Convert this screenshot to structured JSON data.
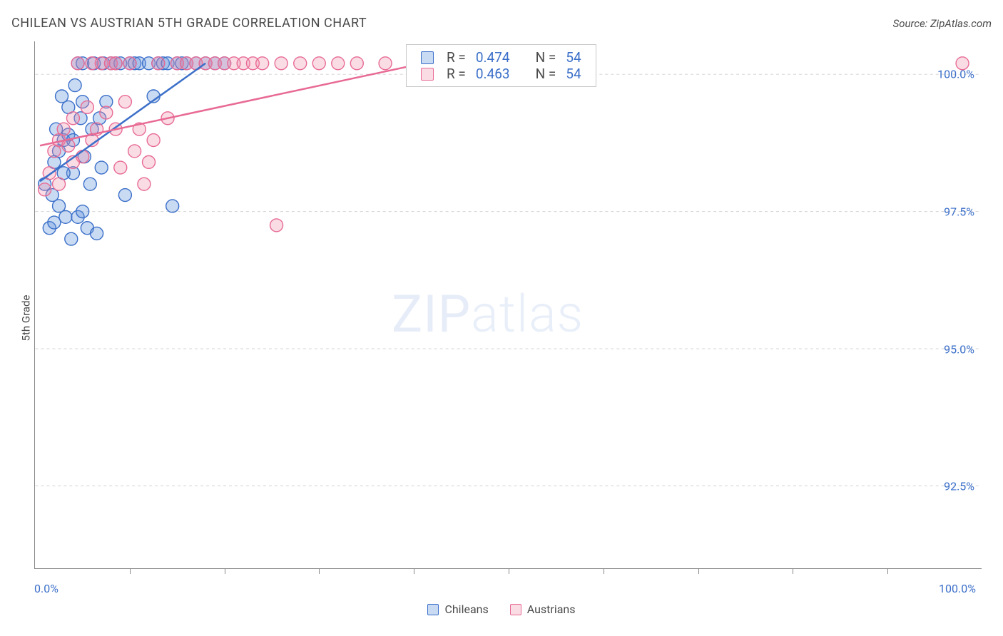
{
  "title": "CHILEAN VS AUSTRIAN 5TH GRADE CORRELATION CHART",
  "source": "Source: ZipAtlas.com",
  "y_axis_label": "5th Grade",
  "watermark_main": "ZIP",
  "watermark_sub": "atlas",
  "colors": {
    "series1_stroke": "#3b6fc9",
    "series1_fill": "rgba(100,150,220,0.35)",
    "series2_stroke": "#e86a94",
    "series2_fill": "rgba(240,140,170,0.3)",
    "grid": "#d0d0d0",
    "axis": "#888888",
    "tick_label": "#3b6fc9",
    "text": "#4a4a4a"
  },
  "chart": {
    "type": "scatter",
    "xlim": [
      0,
      100
    ],
    "ylim": [
      91.0,
      100.6
    ],
    "y_ticks": [
      {
        "v": 92.5,
        "label": "92.5%"
      },
      {
        "v": 95.0,
        "label": "95.0%"
      },
      {
        "v": 97.5,
        "label": "97.5%"
      },
      {
        "v": 100.0,
        "label": "100.0%"
      }
    ],
    "x_ticks_minor": [
      10,
      20,
      30,
      40,
      50,
      60,
      70,
      80,
      90
    ],
    "x_tick_labels": [
      {
        "v": 0,
        "label": "0.0%"
      },
      {
        "v": 100,
        "label": "100.0%"
      }
    ],
    "marker_radius": 9,
    "marker_stroke_width": 1.4,
    "trend_line_width": 2.5
  },
  "series": [
    {
      "name": "Chileans",
      "stroke": "#3b6fc9",
      "fill": "rgba(100,150,220,0.35)",
      "trend": {
        "x1": 0.5,
        "y1": 98.05,
        "x2": 18,
        "y2": 100.2
      },
      "stats": {
        "R": "0.474",
        "N": "54"
      },
      "points": [
        [
          1,
          98.0
        ],
        [
          1.5,
          97.2
        ],
        [
          2,
          97.3
        ],
        [
          2.2,
          99.0
        ],
        [
          2.5,
          98.6
        ],
        [
          3,
          98.8
        ],
        [
          3.2,
          97.4
        ],
        [
          3.5,
          99.4
        ],
        [
          3.8,
          97.0
        ],
        [
          4,
          98.2
        ],
        [
          4.2,
          99.8
        ],
        [
          4.5,
          100.2
        ],
        [
          5,
          100.2
        ],
        [
          5.2,
          98.5
        ],
        [
          5.5,
          97.2
        ],
        [
          6,
          99.0
        ],
        [
          6.2,
          100.2
        ],
        [
          6.5,
          97.1
        ],
        [
          7,
          98.3
        ],
        [
          7.2,
          100.2
        ],
        [
          7.5,
          99.5
        ],
        [
          8,
          100.2
        ],
        [
          8.5,
          100.2
        ],
        [
          9,
          100.2
        ],
        [
          9.5,
          97.8
        ],
        [
          10,
          100.2
        ],
        [
          10.5,
          100.2
        ],
        [
          11,
          100.2
        ],
        [
          12,
          100.2
        ],
        [
          12.5,
          99.6
        ],
        [
          13,
          100.2
        ],
        [
          13.5,
          100.2
        ],
        [
          14,
          100.2
        ],
        [
          15,
          100.2
        ],
        [
          15.5,
          100.2
        ],
        [
          16,
          100.2
        ],
        [
          17,
          100.2
        ],
        [
          18,
          100.2
        ],
        [
          19,
          100.2
        ],
        [
          20,
          100.2
        ],
        [
          3.5,
          98.9
        ],
        [
          4.8,
          99.2
        ],
        [
          5.8,
          98.0
        ],
        [
          2.8,
          99.6
        ],
        [
          6.8,
          99.2
        ],
        [
          4,
          98.8
        ],
        [
          5,
          99.5
        ],
        [
          3,
          98.2
        ],
        [
          2,
          98.4
        ],
        [
          1.8,
          97.8
        ],
        [
          2.5,
          97.6
        ],
        [
          4.5,
          97.4
        ],
        [
          5,
          97.5
        ],
        [
          14.5,
          97.6
        ]
      ]
    },
    {
      "name": "Austrians",
      "stroke": "#e86a94",
      "fill": "rgba(240,140,170,0.3)",
      "trend": {
        "x1": 0.5,
        "y1": 98.7,
        "x2": 41,
        "y2": 100.2
      },
      "stats": {
        "R": "0.463",
        "N": "54"
      },
      "points": [
        [
          1,
          97.9
        ],
        [
          1.5,
          98.2
        ],
        [
          2,
          98.6
        ],
        [
          2.5,
          98.8
        ],
        [
          3,
          99.0
        ],
        [
          3.5,
          98.7
        ],
        [
          4,
          99.2
        ],
        [
          4.5,
          100.2
        ],
        [
          5,
          98.5
        ],
        [
          5.5,
          99.4
        ],
        [
          6,
          100.2
        ],
        [
          6.5,
          99.0
        ],
        [
          7,
          100.2
        ],
        [
          7.5,
          99.3
        ],
        [
          8,
          100.2
        ],
        [
          8.5,
          100.2
        ],
        [
          9,
          98.3
        ],
        [
          9.5,
          99.5
        ],
        [
          10,
          100.2
        ],
        [
          10.5,
          98.6
        ],
        [
          11,
          99.0
        ],
        [
          12,
          98.4
        ],
        [
          13,
          100.2
        ],
        [
          14,
          99.2
        ],
        [
          15,
          100.2
        ],
        [
          16,
          100.2
        ],
        [
          17,
          100.2
        ],
        [
          18,
          100.2
        ],
        [
          19,
          100.2
        ],
        [
          20,
          100.2
        ],
        [
          21,
          100.2
        ],
        [
          22,
          100.2
        ],
        [
          23,
          100.2
        ],
        [
          24,
          100.2
        ],
        [
          26,
          100.2
        ],
        [
          28,
          100.2
        ],
        [
          30,
          100.2
        ],
        [
          32,
          100.2
        ],
        [
          34,
          100.2
        ],
        [
          37,
          100.2
        ],
        [
          40,
          100.2
        ],
        [
          42,
          100.2
        ],
        [
          48,
          100.2
        ],
        [
          52,
          100.2
        ],
        [
          55,
          100.2
        ],
        [
          58,
          100.2
        ],
        [
          98,
          100.2
        ],
        [
          25.5,
          97.25
        ],
        [
          11.5,
          98.0
        ],
        [
          12.5,
          98.8
        ],
        [
          8.5,
          99.0
        ],
        [
          6,
          98.8
        ],
        [
          4,
          98.4
        ],
        [
          2.5,
          98.0
        ]
      ]
    }
  ],
  "stats_box": {
    "r_label": "R =",
    "n_label": "N ="
  },
  "legend_series1": "Chileans",
  "legend_series2": "Austrians"
}
